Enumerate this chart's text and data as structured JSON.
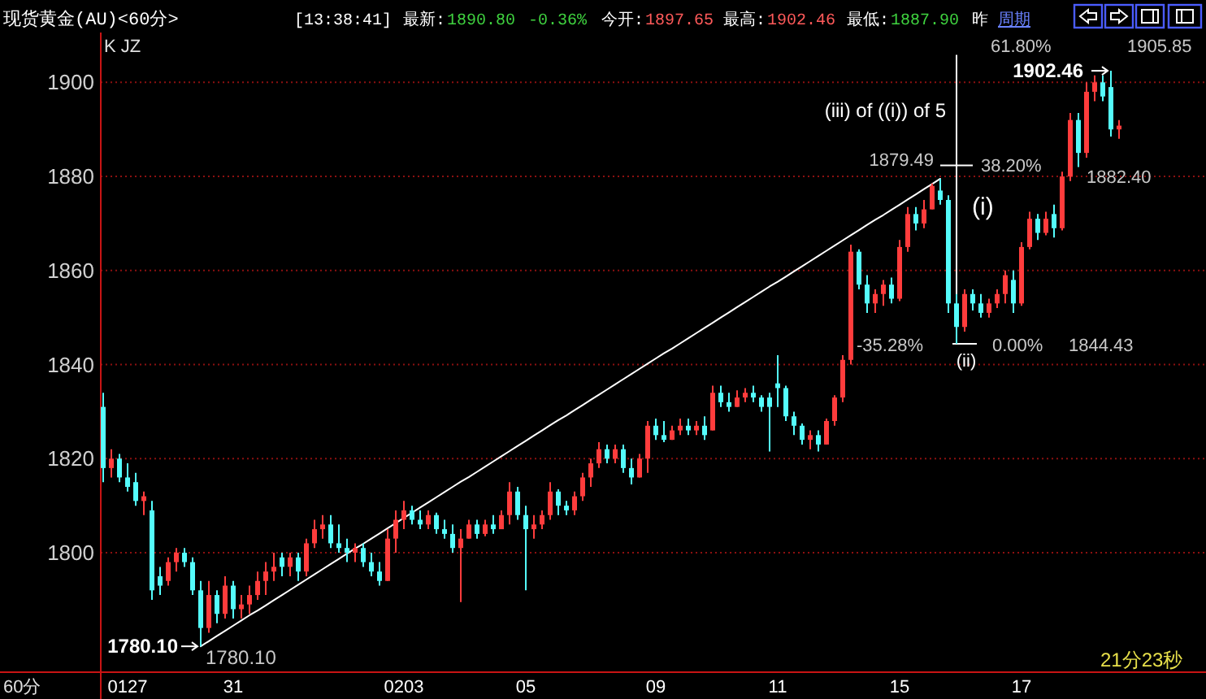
{
  "chart_data": {
    "type": "candlestick",
    "title": "现货黄金(AU)<60分>",
    "categories": [
      null,
      null,
      null,
      "0127",
      null,
      null,
      null,
      null,
      null,
      null,
      null,
      null,
      null,
      null,
      null,
      null,
      "31",
      null,
      null,
      null,
      null,
      null,
      null,
      null,
      null,
      null,
      null,
      null,
      null,
      null,
      null,
      null,
      null,
      null,
      null,
      null,
      null,
      "0203",
      null,
      null,
      null,
      null,
      null,
      null,
      null,
      null,
      null,
      null,
      null,
      null,
      null,
      null,
      "05",
      null,
      null,
      null,
      null,
      null,
      null,
      null,
      null,
      null,
      null,
      null,
      null,
      null,
      null,
      null,
      "09",
      null,
      null,
      null,
      null,
      null,
      null,
      null,
      null,
      null,
      null,
      null,
      null,
      null,
      null,
      "11",
      null,
      null,
      null,
      null,
      null,
      null,
      null,
      null,
      null,
      null,
      null,
      null,
      null,
      null,
      "15",
      null,
      null,
      null,
      null,
      null,
      null,
      null,
      null,
      null,
      null,
      null,
      null,
      null,
      null,
      "17",
      null,
      null,
      null,
      null,
      null,
      null,
      null,
      null,
      null,
      null,
      null,
      null
    ],
    "ohlc": [
      [
        1831,
        1834,
        1815,
        1818
      ],
      [
        1818,
        1822,
        1816,
        1820
      ],
      [
        1820,
        1821,
        1815,
        1816
      ],
      [
        1816,
        1819,
        1813,
        1814
      ],
      [
        1815,
        1817,
        1810,
        1811
      ],
      [
        1811,
        1813,
        1808,
        1812
      ],
      [
        1809,
        1811,
        1790,
        1792
      ],
      [
        1795,
        1797,
        1791,
        1793
      ],
      [
        1794,
        1799,
        1793,
        1798
      ],
      [
        1798,
        1801,
        1796,
        1800
      ],
      [
        1800,
        1801,
        1797,
        1798
      ],
      [
        1798,
        1799,
        1791,
        1792
      ],
      [
        1792,
        1794,
        1780.1,
        1784
      ],
      [
        1784,
        1794,
        1783,
        1791
      ],
      [
        1791,
        1792,
        1785,
        1787
      ],
      [
        1787,
        1795,
        1786,
        1793
      ],
      [
        1793,
        1794,
        1786,
        1788
      ],
      [
        1788,
        1791,
        1786,
        1789
      ],
      [
        1789,
        1793,
        1787,
        1791
      ],
      [
        1791,
        1796,
        1790,
        1794
      ],
      [
        1794,
        1798,
        1791,
        1796
      ],
      [
        1796,
        1800,
        1794,
        1797
      ],
      [
        1799,
        1800,
        1795,
        1797
      ],
      [
        1797,
        1800,
        1795,
        1799
      ],
      [
        1799,
        1800,
        1794,
        1796
      ],
      [
        1796,
        1803,
        1795,
        1802
      ],
      [
        1802,
        1807,
        1801,
        1805
      ],
      [
        1805,
        1808,
        1803,
        1806
      ],
      [
        1806,
        1808,
        1801,
        1802
      ],
      [
        1802,
        1806,
        1800,
        1801
      ],
      [
        1801,
        1803,
        1798,
        1800
      ],
      [
        1800,
        1802,
        1798,
        1801
      ],
      [
        1801,
        1802,
        1797,
        1798
      ],
      [
        1798,
        1800,
        1795,
        1796
      ],
      [
        1796,
        1798,
        1793,
        1794
      ],
      [
        1794,
        1805,
        1794,
        1803
      ],
      [
        1803,
        1809,
        1800,
        1807
      ],
      [
        1807,
        1811,
        1805,
        1809
      ],
      [
        1809,
        1810,
        1806,
        1807
      ],
      [
        1807,
        1809,
        1805,
        1806
      ],
      [
        1806,
        1809,
        1805,
        1808
      ],
      [
        1808,
        1808.5,
        1804,
        1805
      ],
      [
        1805,
        1807,
        1803,
        1804
      ],
      [
        1804,
        1806,
        1800,
        1801
      ],
      [
        1801,
        1805,
        1789.5,
        1803
      ],
      [
        1803,
        1807,
        1803,
        1806
      ],
      [
        1806,
        1807,
        1803,
        1804
      ],
      [
        1804,
        1807,
        1803.5,
        1806
      ],
      [
        1806,
        1808,
        1804,
        1805
      ],
      [
        1805,
        1809,
        1805,
        1808
      ],
      [
        1808,
        1815,
        1806,
        1813
      ],
      [
        1813,
        1814,
        1807,
        1808
      ],
      [
        1808,
        1810,
        1792,
        1805
      ],
      [
        1805,
        1808,
        1803,
        1806
      ],
      [
        1806,
        1809,
        1805,
        1808
      ],
      [
        1808,
        1815,
        1807,
        1813
      ],
      [
        1813,
        1813.5,
        1808,
        1810
      ],
      [
        1810,
        1811,
        1808,
        1809
      ],
      [
        1809,
        1813,
        1808,
        1812
      ],
      [
        1812,
        1817,
        1811,
        1816
      ],
      [
        1816,
        1820,
        1814,
        1819
      ],
      [
        1819,
        1823.5,
        1818,
        1822
      ],
      [
        1822,
        1823,
        1819,
        1820
      ],
      [
        1820,
        1823,
        1819,
        1822
      ],
      [
        1822,
        1823,
        1817,
        1818
      ],
      [
        1818,
        1820,
        1814.5,
        1816
      ],
      [
        1816,
        1821,
        1816,
        1820
      ],
      [
        1820,
        1828,
        1817,
        1827
      ],
      [
        1827,
        1828.5,
        1824,
        1825
      ],
      [
        1825,
        1828,
        1823.5,
        1824
      ],
      [
        1824,
        1827,
        1824,
        1826
      ],
      [
        1826,
        1828.5,
        1825,
        1827
      ],
      [
        1827,
        1828.5,
        1825,
        1826
      ],
      [
        1826,
        1828,
        1825,
        1827
      ],
      [
        1827,
        1829,
        1824,
        1825
      ],
      [
        1826,
        1835.5,
        1826,
        1834
      ],
      [
        1834,
        1835.5,
        1831,
        1832
      ],
      [
        1832,
        1834,
        1830,
        1831
      ],
      [
        1831,
        1834.5,
        1831,
        1833
      ],
      [
        1833,
        1835,
        1832,
        1834
      ],
      [
        1834,
        1835.5,
        1832,
        1833
      ],
      [
        1833,
        1833.5,
        1830,
        1831
      ],
      [
        1833,
        1834,
        1821.5,
        1831
      ],
      [
        1836,
        1842,
        1831,
        1835
      ],
      [
        1835,
        1835.5,
        1828,
        1829
      ],
      [
        1829,
        1830,
        1825,
        1827
      ],
      [
        1827,
        1827.5,
        1823,
        1824
      ],
      [
        1824,
        1826,
        1822,
        1825
      ],
      [
        1825,
        1826,
        1821.5,
        1823
      ],
      [
        1823,
        1828.5,
        1823,
        1828
      ],
      [
        1828,
        1833.5,
        1827,
        1833
      ],
      [
        1833,
        1842,
        1832,
        1841
      ],
      [
        1841,
        1865.5,
        1840,
        1864
      ],
      [
        1864,
        1864.5,
        1856,
        1857
      ],
      [
        1857,
        1859,
        1851,
        1853
      ],
      [
        1853,
        1856,
        1851,
        1855
      ],
      [
        1855,
        1858,
        1852.5,
        1857
      ],
      [
        1857,
        1858.5,
        1853,
        1854
      ],
      [
        1854,
        1866.5,
        1853.5,
        1865
      ],
      [
        1865,
        1873.5,
        1864,
        1872
      ],
      [
        1872,
        1873.5,
        1868.5,
        1870
      ],
      [
        1870,
        1875,
        1869,
        1873
      ],
      [
        1873,
        1878.5,
        1873,
        1878
      ],
      [
        1877,
        1879.49,
        1874,
        1875
      ],
      [
        1875,
        1876,
        1851,
        1853
      ],
      [
        1853,
        1855,
        1844.43,
        1848
      ],
      [
        1848,
        1856,
        1847,
        1855
      ],
      [
        1855,
        1856,
        1851.5,
        1853
      ],
      [
        1853,
        1855,
        1850,
        1851
      ],
      [
        1851,
        1854,
        1850,
        1853
      ],
      [
        1853,
        1856,
        1852,
        1855
      ],
      [
        1855,
        1860,
        1853,
        1859
      ],
      [
        1858,
        1860,
        1851,
        1853
      ],
      [
        1853,
        1866,
        1852.5,
        1865
      ],
      [
        1865,
        1872.5,
        1864.5,
        1871
      ],
      [
        1871,
        1872,
        1866.5,
        1868
      ],
      [
        1868,
        1872.5,
        1867.5,
        1871
      ],
      [
        1872,
        1874,
        1867,
        1869
      ],
      [
        1869,
        1881,
        1868.5,
        1880
      ],
      [
        1880,
        1893.5,
        1879,
        1892
      ],
      [
        1892,
        1893.5,
        1882,
        1885
      ],
      [
        1885,
        1900,
        1884,
        1898
      ],
      [
        1898,
        1901.5,
        1896,
        1900
      ],
      [
        1900,
        1901.5,
        1896,
        1897
      ],
      [
        1899,
        1902.46,
        1888.5,
        1890
      ],
      [
        1890,
        1892,
        1888,
        1890.8
      ]
    ],
    "colors": [
      "#54fcfc",
      "#ff3c3c",
      "#54fcfc",
      "#54fcfc",
      "#54fcfc",
      "#ff3c3c",
      "#54fcfc",
      "#54fcfc",
      "#ff3c3c",
      "#ff3c3c",
      "#54fcfc",
      "#54fcfc",
      "#54fcfc",
      "#ff3c3c",
      "#54fcfc",
      "#ff3c3c",
      "#54fcfc",
      "#ff3c3c",
      "#ff3c3c",
      "#ff3c3c",
      "#ff3c3c",
      "#ff3c3c",
      "#54fcfc",
      "#ff3c3c",
      "#54fcfc",
      "#ff3c3c",
      "#ff3c3c",
      "#ff3c3c",
      "#54fcfc",
      "#54fcfc",
      "#54fcfc",
      "#ff3c3c",
      "#54fcfc",
      "#54fcfc",
      "#54fcfc",
      "#ff3c3c",
      "#ff3c3c",
      "#ff3c3c",
      "#54fcfc",
      "#54fcfc",
      "#ff3c3c",
      "#54fcfc",
      "#54fcfc",
      "#54fcfc",
      "#ff3c3c",
      "#ff3c3c",
      "#54fcfc",
      "#ff3c3c",
      "#54fcfc",
      "#ff3c3c",
      "#ff3c3c",
      "#54fcfc",
      "#54fcfc",
      "#ff3c3c",
      "#ff3c3c",
      "#ff3c3c",
      "#54fcfc",
      "#54fcfc",
      "#ff3c3c",
      "#ff3c3c",
      "#ff3c3c",
      "#ff3c3c",
      "#54fcfc",
      "#ff3c3c",
      "#54fcfc",
      "#54fcfc",
      "#ff3c3c",
      "#ff3c3c",
      "#54fcfc",
      "#54fcfc",
      "#ff3c3c",
      "#ff3c3c",
      "#54fcfc",
      "#ff3c3c",
      "#54fcfc",
      "#ff3c3c",
      "#54fcfc",
      "#54fcfc",
      "#ff3c3c",
      "#ff3c3c",
      "#54fcfc",
      "#54fcfc",
      "#54fcfc",
      "#54fcfc",
      "#54fcfc",
      "#54fcfc",
      "#54fcfc",
      "#ff3c3c",
      "#54fcfc",
      "#ff3c3c",
      "#ff3c3c",
      "#ff3c3c",
      "#ff3c3c",
      "#54fcfc",
      "#54fcfc",
      "#ff3c3c",
      "#ff3c3c",
      "#54fcfc",
      "#ff3c3c",
      "#ff3c3c",
      "#54fcfc",
      "#ff3c3c",
      "#ff3c3c",
      "#54fcfc",
      "#54fcfc",
      "#54fcfc",
      "#ff3c3c",
      "#54fcfc",
      "#54fcfc",
      "#ff3c3c",
      "#ff3c3c",
      "#ff3c3c",
      "#54fcfc",
      "#ff3c3c",
      "#ff3c3c",
      "#54fcfc",
      "#ff3c3c",
      "#54fcfc",
      "#ff3c3c",
      "#ff3c3c",
      "#54fcfc",
      "#ff3c3c",
      "#ff3c3c",
      "#54fcfc",
      "#54fcfc",
      "#ff3c3c"
    ],
    "series": [
      {
        "type": "line",
        "color": "#ffffff",
        "values": [
          null,
          null,
          null,
          null,
          null,
          null,
          null,
          null,
          null,
          null,
          null,
          null,
          1780.1,
          1781.2,
          1782.3,
          1783.4,
          1784.5,
          1785.6,
          1786.7,
          1787.7,
          1788.8,
          1789.9,
          1791.0,
          1792.1,
          1793.2,
          1794.3,
          1795.4,
          1796.5,
          1797.6,
          1798.7,
          1799.8,
          1800.9,
          1801.9,
          1803.0,
          1804.1,
          1805.2,
          1806.3,
          1807.4,
          1808.5,
          1809.6,
          1810.7,
          1811.8,
          1812.9,
          1814.0,
          1815.1,
          1816.1,
          1817.2,
          1818.3,
          1819.4,
          1820.5,
          1821.6,
          1822.7,
          1823.8,
          1824.9,
          1826.0,
          1827.1,
          1828.2,
          1829.2,
          1830.3,
          1831.4,
          1832.5,
          1833.6,
          1834.7,
          1835.8,
          1836.9,
          1838.0,
          1839.1,
          1840.2,
          1841.3,
          1842.4,
          1843.4,
          1844.5,
          1845.6,
          1846.7,
          1847.8,
          1848.9,
          1850.0,
          1851.1,
          1852.2,
          1853.3,
          1854.4,
          1855.5,
          1856.6,
          1857.6,
          1858.7,
          1859.8,
          1860.9,
          1862.0,
          1863.1,
          1864.2,
          1865.3,
          1866.4,
          1867.5,
          1868.6,
          1869.7,
          1870.8,
          1871.8,
          1872.9,
          1874.0,
          1875.1,
          1876.2,
          1877.3,
          1878.4,
          1879.5,
          null,
          null,
          null,
          null,
          null,
          null,
          null,
          null,
          null,
          null,
          null,
          null,
          null,
          null,
          null,
          null,
          null,
          null,
          null,
          null,
          null,
          null
        ]
      }
    ],
    "ylim": [
      1774.6,
      1910.6
    ],
    "yticks": [
      1800,
      1820,
      1840,
      1860,
      1880,
      1900
    ],
    "grid": "y",
    "annotations": [
      "[13:38:41]",
      "最新:",
      "1890.80",
      "-0.36%",
      "今开:",
      "1897.65",
      "最高:",
      "1902.46",
      "最低:",
      "1887.90",
      "昨",
      "周期",
      "K JZ",
      "60分",
      "21分23秒",
      "(i)",
      "(iii) of ((i)) of 5",
      "-35.28%",
      "1780.10",
      "1780.10",
      "1879.49",
      "1902.46",
      "61.80%",
      "1905.85",
      "38.20%",
      "1882.40",
      "(ii)",
      "0.00%",
      "1844.43"
    ]
  }
}
